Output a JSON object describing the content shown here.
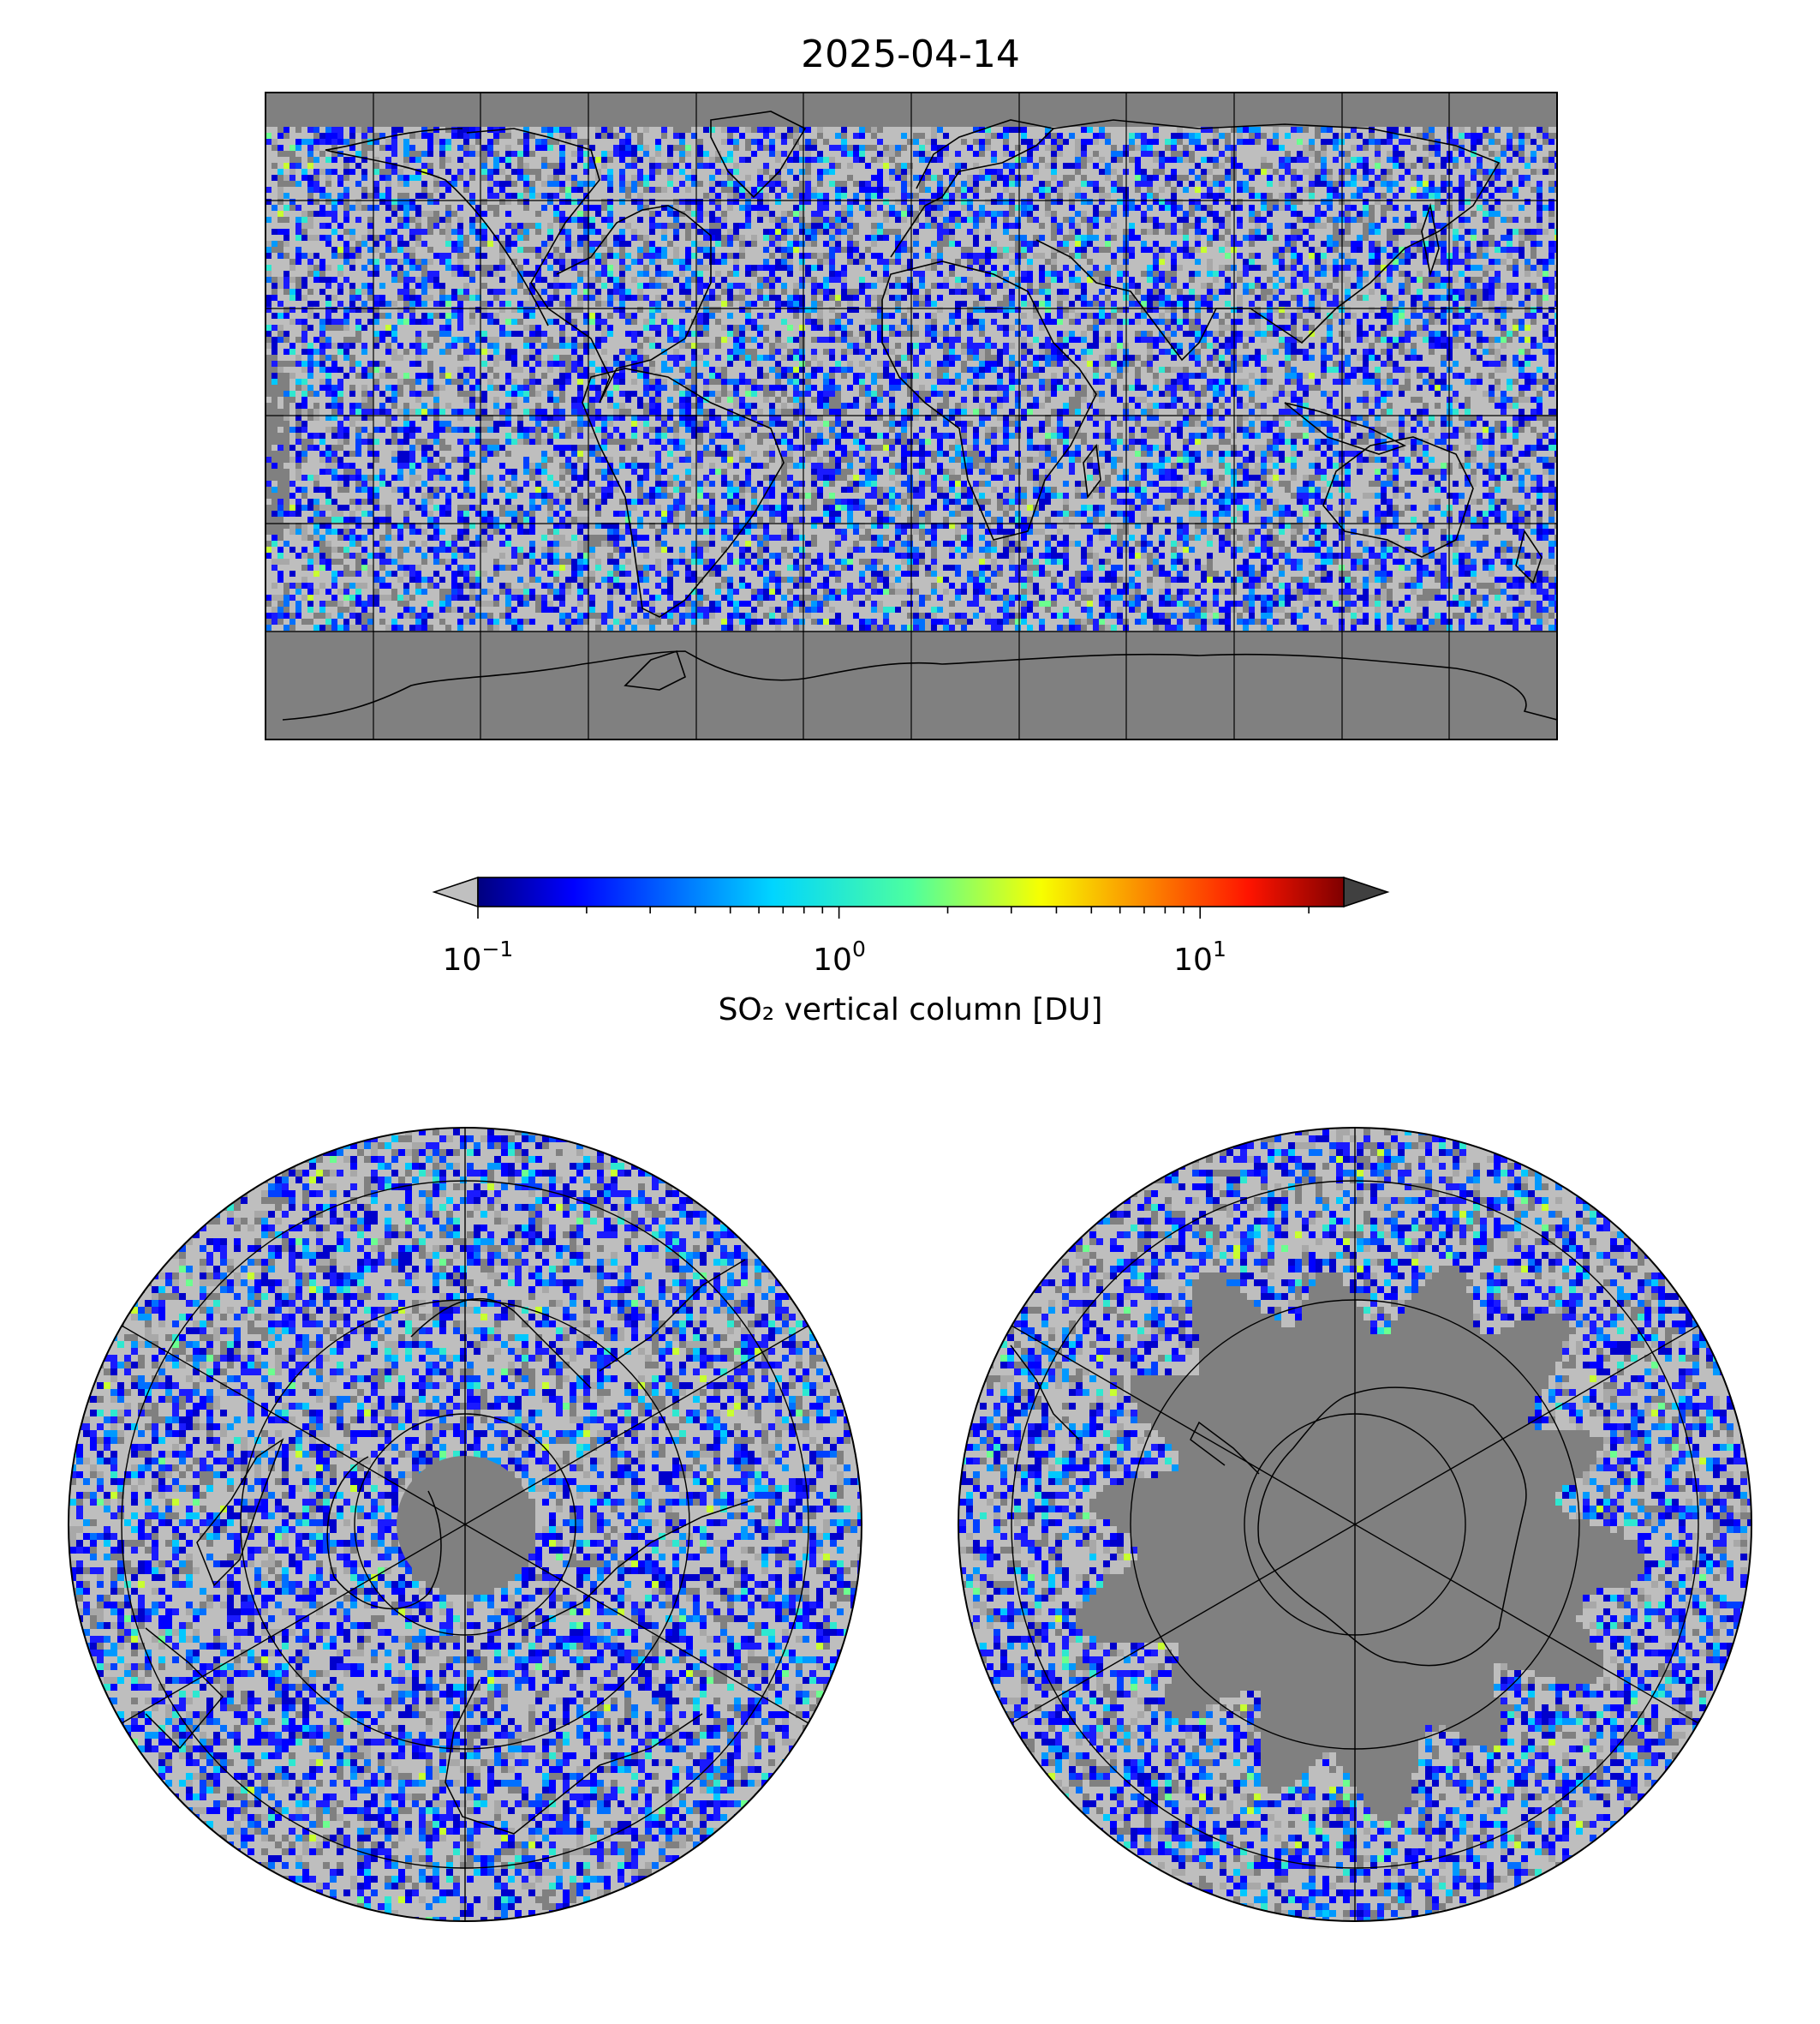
{
  "title": "2025-04-14",
  "colorbar": {
    "label": "SO₂ vertical column [DU]",
    "scale": "log",
    "range": [
      0.1,
      25
    ],
    "extend": "both",
    "under_color": "#c0c0c0",
    "over_color": "#404040",
    "colormap": "jet",
    "ticks": [
      {
        "base": "10",
        "exp": "−1"
      },
      {
        "base": "10",
        "exp": "0"
      },
      {
        "base": "10",
        "exp": "1"
      }
    ]
  },
  "colors": {
    "no_data": "#808080",
    "below_min": "#bebebe",
    "coastline": "#000000",
    "grid": "#000000"
  },
  "panels": [
    {
      "projection": "plate-carree",
      "region": "global",
      "extent_lon": [
        -180,
        180
      ],
      "extent_lat": [
        -90,
        90
      ]
    },
    {
      "projection": "north-polar-stereographic",
      "region": "northern hemisphere"
    },
    {
      "projection": "south-polar-stereographic",
      "region": "southern hemisphere"
    }
  ]
}
